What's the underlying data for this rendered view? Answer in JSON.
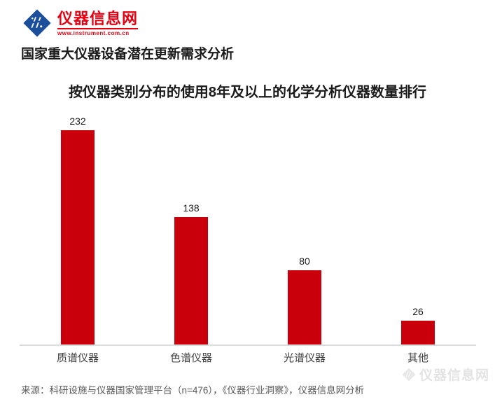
{
  "logo": {
    "name": "仪器信息网",
    "url_text": "www.instrument.com.cn",
    "brand_red": "#e60012",
    "brand_blue": "#1b4f9c"
  },
  "page": {
    "title": "国家重大仪器设备潜在更新需求分析",
    "source": "来源：科研设施与仪器国家管理平台（n=476），《仪器行业洞察》，仪器信息网分析"
  },
  "watermark": {
    "text": "仪器信息网"
  },
  "chart_data": {
    "type": "bar",
    "title": "按仪器类别分布的使用8年及以上的化学分析仪器数量排行",
    "categories": [
      "质谱仪器",
      "色谱仪器",
      "光谱仪器",
      "其他"
    ],
    "values": [
      232,
      138,
      80,
      26
    ],
    "xlabel": "",
    "ylabel": "",
    "ylim": [
      0,
      250
    ],
    "grid": false,
    "legend": false,
    "data_labels": true,
    "bar_color": "#c9000b",
    "axis_line_color": "#dcdcdc"
  }
}
